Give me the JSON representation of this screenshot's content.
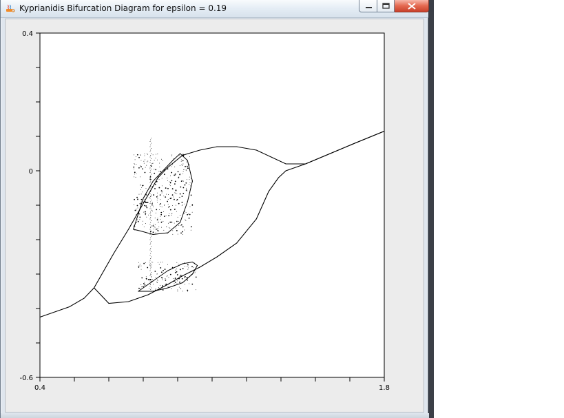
{
  "window": {
    "title": "Kyprianidis Bifurcation Diagram for epsilon = 0.19",
    "app_icon": "java-coffee-icon",
    "controls": [
      "minimize-icon",
      "maximize-icon",
      "close-icon"
    ]
  },
  "chart_data": {
    "type": "scatter",
    "title": "",
    "xlabel": "",
    "ylabel": "",
    "xlim": [
      0.4,
      1.8
    ],
    "ylim": [
      -0.6,
      0.4
    ],
    "x_tick_labels": [
      "0.4",
      "1.8"
    ],
    "y_tick_labels": [
      "0.4",
      "0",
      "-0.6"
    ],
    "grid": false,
    "series": [
      {
        "values": [
          [
            0.4,
            -0.425
          ],
          [
            0.52,
            -0.395
          ],
          [
            0.58,
            -0.37
          ],
          [
            0.62,
            -0.34
          ],
          [
            0.66,
            -0.29
          ],
          [
            0.7,
            -0.24
          ],
          [
            0.76,
            -0.17
          ],
          [
            0.8,
            -0.12
          ],
          [
            0.84,
            -0.07
          ],
          [
            0.88,
            -0.02
          ],
          [
            0.92,
            0.01
          ],
          [
            0.98,
            0.045
          ],
          [
            1.05,
            0.06
          ],
          [
            1.12,
            0.07
          ],
          [
            1.2,
            0.07
          ],
          [
            1.28,
            0.06
          ],
          [
            1.34,
            0.04
          ],
          [
            1.4,
            0.02
          ],
          [
            1.48,
            0.02
          ],
          [
            1.58,
            0.05
          ],
          [
            1.68,
            0.08
          ],
          [
            1.8,
            0.115
          ]
        ]
      },
      {
        "values": [
          [
            0.62,
            -0.34
          ],
          [
            0.68,
            -0.385
          ],
          [
            0.76,
            -0.38
          ],
          [
            0.84,
            -0.36
          ],
          [
            0.92,
            -0.33
          ],
          [
            0.98,
            -0.305
          ],
          [
            1.05,
            -0.28
          ],
          [
            1.12,
            -0.25
          ],
          [
            1.2,
            -0.21
          ],
          [
            1.28,
            -0.14
          ],
          [
            1.33,
            -0.06
          ],
          [
            1.37,
            -0.02
          ],
          [
            1.4,
            0.0
          ],
          [
            1.48,
            0.02
          ],
          [
            1.58,
            0.05
          ],
          [
            1.68,
            0.08
          ],
          [
            1.8,
            0.115
          ]
        ]
      },
      {
        "values": [
          [
            0.78,
            -0.17
          ],
          [
            0.82,
            -0.08
          ],
          [
            0.86,
            -0.03
          ],
          [
            0.9,
            0.0
          ],
          [
            0.94,
            0.03
          ],
          [
            0.97,
            0.05
          ],
          [
            1.0,
            0.03
          ],
          [
            1.02,
            -0.03
          ],
          [
            1.0,
            -0.09
          ],
          [
            0.97,
            -0.15
          ],
          [
            0.92,
            -0.18
          ],
          [
            0.86,
            -0.185
          ],
          [
            0.81,
            -0.175
          ],
          [
            0.78,
            -0.17
          ]
        ]
      },
      {
        "values": [
          [
            0.8,
            -0.35
          ],
          [
            0.86,
            -0.32
          ],
          [
            0.92,
            -0.29
          ],
          [
            0.98,
            -0.27
          ],
          [
            1.02,
            -0.265
          ],
          [
            1.04,
            -0.275
          ],
          [
            1.02,
            -0.3
          ],
          [
            0.98,
            -0.325
          ],
          [
            0.92,
            -0.34
          ],
          [
            0.86,
            -0.35
          ],
          [
            0.8,
            -0.35
          ]
        ]
      }
    ]
  }
}
